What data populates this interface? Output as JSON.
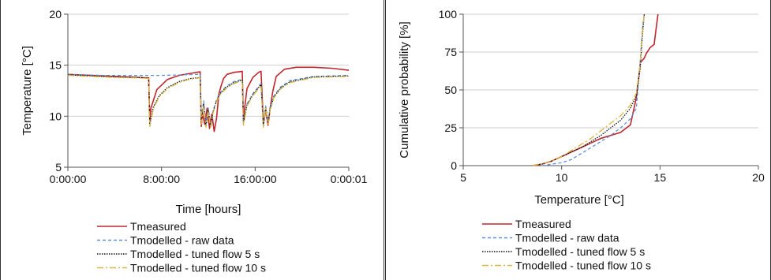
{
  "chart_data": [
    {
      "type": "line",
      "xlabel": "Time [hours]",
      "ylabel": "Temperature [°C]",
      "x_tick_labels": [
        "0:00:00",
        "8:00:00",
        "16:00:00",
        "0:00:01"
      ],
      "x_tick_hours": [
        0,
        8,
        16,
        24
      ],
      "xlim": [
        0,
        24
      ],
      "ylim": [
        5,
        20
      ],
      "y_ticks": [
        5,
        10,
        15,
        20
      ],
      "grid": "horizontal",
      "legend_placement": "bottom",
      "series": [
        {
          "name": "Tmeasured",
          "color": "#c0262d",
          "dash": "solid",
          "x": [
            0,
            2,
            4,
            6,
            6.9,
            7,
            7.1,
            7.6,
            8.5,
            9.5,
            10.5,
            11,
            11.3,
            11.4,
            11.5,
            11.7,
            11.9,
            12.1,
            12.3,
            12.5,
            12.7,
            12.9,
            13.1,
            13.3,
            13.6,
            14.2,
            14.6,
            14.9,
            15.0,
            15.1,
            15.3,
            15.8,
            16.3,
            16.5,
            16.7,
            16.9,
            17.1,
            17.3,
            17.5,
            17.8,
            18.5,
            19.5,
            21,
            22.5,
            24
          ],
          "y": [
            14.1,
            14.0,
            13.9,
            13.8,
            13.75,
            9.5,
            10.8,
            12.6,
            13.6,
            14.0,
            14.2,
            14.3,
            14.35,
            9.0,
            10.3,
            9.2,
            10.8,
            8.8,
            10.2,
            8.5,
            9.8,
            12.2,
            13.0,
            13.7,
            14.1,
            14.3,
            14.35,
            14.4,
            9.5,
            10.8,
            12.7,
            13.8,
            14.3,
            14.4,
            9.3,
            10.6,
            9.1,
            10.9,
            12.4,
            13.9,
            14.6,
            14.8,
            14.8,
            14.7,
            14.5
          ]
        },
        {
          "name": "Tmodelled - raw data",
          "color": "#5b8fd8",
          "dash": "dashed",
          "x": [
            0,
            3,
            6,
            7,
            8,
            9.5,
            11,
            11.3,
            11.4,
            11.6,
            11.8,
            12,
            12.2,
            12.4,
            12.7,
            13,
            13.5,
            14.2,
            14.9,
            15.0,
            15.3,
            15.8,
            16.5,
            16.7,
            16.9,
            17.1,
            17.3,
            17.6,
            18.2,
            19,
            21,
            24
          ],
          "y": [
            14.1,
            14.0,
            14.0,
            14.0,
            14.0,
            14.05,
            14.1,
            14.1,
            9.8,
            11.5,
            9.2,
            10.8,
            9.0,
            10.5,
            11.6,
            12.3,
            12.9,
            13.4,
            13.6,
            9.4,
            11.2,
            12.2,
            13.2,
            9.2,
            11.0,
            9.4,
            11.0,
            12.0,
            12.9,
            13.5,
            13.9,
            14.0
          ]
        },
        {
          "name": "Tmodelled - tuned flow 5 s",
          "color": "#111111",
          "dash": "dotted",
          "x": [
            0,
            2,
            4,
            6,
            6.9,
            7,
            7.3,
            7.8,
            8.5,
            9.5,
            10.5,
            11.3,
            11.4,
            11.6,
            11.8,
            12,
            12.2,
            12.4,
            12.7,
            13,
            13.5,
            14.2,
            14.9,
            15.0,
            15.3,
            15.8,
            16.5,
            16.7,
            16.9,
            17.1,
            17.3,
            17.6,
            18.2,
            19,
            21,
            24
          ],
          "y": [
            14.05,
            13.95,
            13.85,
            13.8,
            13.75,
            9.2,
            10.9,
            12.0,
            12.8,
            13.4,
            13.7,
            13.8,
            9.4,
            11.2,
            9.0,
            10.6,
            8.9,
            10.4,
            11.5,
            12.2,
            12.8,
            13.3,
            13.55,
            9.3,
            11.1,
            12.1,
            13.1,
            9.0,
            10.9,
            9.3,
            10.8,
            11.9,
            12.8,
            13.4,
            13.85,
            13.95
          ]
        },
        {
          "name": "Tmodelled - tuned flow 10 s",
          "color": "#d9b73e",
          "dash": "dashdot",
          "x": [
            0,
            2,
            4,
            6,
            6.9,
            7,
            7.3,
            7.8,
            8.5,
            9.5,
            10.5,
            11.3,
            11.4,
            11.6,
            11.8,
            12,
            12.2,
            12.4,
            12.7,
            13,
            13.5,
            14.2,
            14.9,
            15.0,
            15.3,
            15.8,
            16.5,
            16.7,
            16.9,
            17.1,
            17.3,
            17.6,
            18.2,
            19,
            21,
            24
          ],
          "y": [
            14.0,
            13.9,
            13.8,
            13.75,
            13.7,
            9.0,
            10.7,
            11.9,
            12.7,
            13.3,
            13.65,
            13.75,
            9.2,
            11.0,
            8.9,
            10.5,
            8.8,
            10.3,
            11.4,
            12.1,
            12.7,
            13.2,
            13.5,
            9.1,
            11.0,
            12.0,
            13.0,
            8.9,
            10.8,
            9.2,
            10.7,
            11.8,
            12.7,
            13.3,
            13.8,
            13.9
          ]
        }
      ]
    },
    {
      "type": "line",
      "xlabel": "Temperature [°C]",
      "ylabel": "Cumulative probability [%]",
      "xlim": [
        5,
        20
      ],
      "ylim": [
        0,
        100
      ],
      "x_ticks": [
        5,
        10,
        15,
        20
      ],
      "y_ticks": [
        0,
        25,
        50,
        75,
        100
      ],
      "grid": "horizontal",
      "legend_placement": "bottom",
      "series": [
        {
          "name": "Tmeasured",
          "color": "#c0262d",
          "dash": "solid",
          "x": [
            8.5,
            9.0,
            9.5,
            10.0,
            10.5,
            11.0,
            11.5,
            12.0,
            12.5,
            13.0,
            13.5,
            13.8,
            14.0,
            14.2,
            14.3,
            14.5,
            14.7,
            14.8,
            14.9
          ],
          "y": [
            0,
            1,
            3,
            6,
            9,
            12,
            15,
            18,
            20,
            22,
            27,
            45,
            68,
            71,
            74,
            78,
            80,
            90,
            100
          ]
        },
        {
          "name": "Tmodelled - raw data",
          "color": "#5b8fd8",
          "dash": "dashed",
          "x": [
            9.0,
            9.5,
            10.0,
            10.5,
            11.0,
            11.5,
            12.0,
            12.5,
            13.0,
            13.5,
            13.8,
            14.0,
            14.1,
            14.2
          ],
          "y": [
            0,
            1,
            2,
            4,
            8,
            12,
            16,
            20,
            25,
            31,
            38,
            70,
            90,
            100
          ]
        },
        {
          "name": "Tmodelled - tuned flow 5 s",
          "color": "#111111",
          "dash": "dotted",
          "x": [
            8.5,
            9.0,
            9.5,
            10.0,
            10.5,
            11.0,
            11.5,
            12.0,
            12.5,
            13.0,
            13.5,
            13.8,
            14.0,
            14.1,
            14.2
          ],
          "y": [
            0,
            1,
            3,
            6,
            9,
            12,
            16,
            20,
            25,
            30,
            38,
            46,
            65,
            85,
            100
          ]
        },
        {
          "name": "Tmodelled - tuned flow 10 s",
          "color": "#d9b73e",
          "dash": "dashdot",
          "x": [
            8.5,
            9.0,
            9.5,
            10.0,
            10.5,
            11.0,
            11.5,
            12.0,
            12.5,
            13.0,
            13.5,
            13.8,
            14.0,
            14.1,
            14.2
          ],
          "y": [
            0,
            1,
            3,
            6,
            10,
            14,
            18,
            23,
            28,
            33,
            40,
            48,
            68,
            88,
            100
          ]
        }
      ]
    }
  ]
}
